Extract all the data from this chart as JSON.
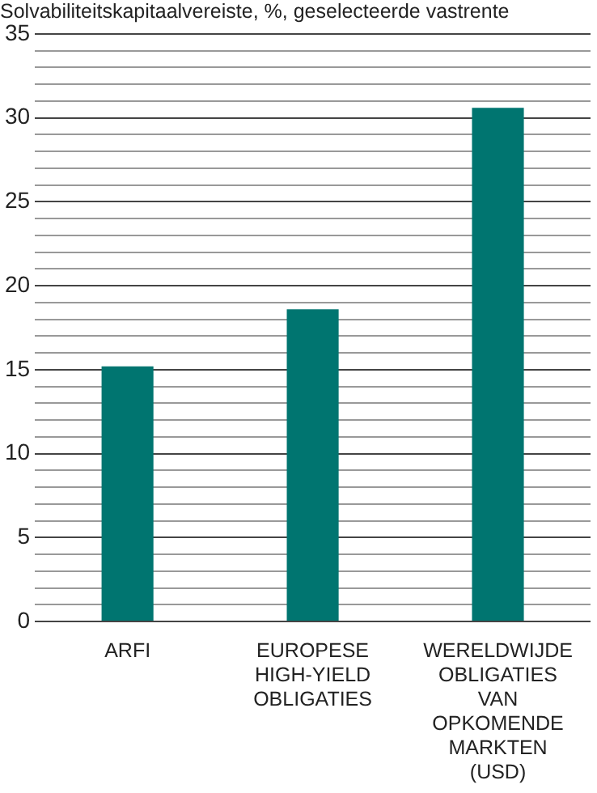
{
  "chart_data": {
    "type": "bar",
    "title": "Solvabiliteitskapitaalvereiste, %, geselecteerde vastrente",
    "categories": [
      "ARFI",
      "EUROPESE HIGH-YIELD OBLIGATIES",
      "WERELDWIJDE OBLIGATIES VAN OPKOMENDE MARKTEN (USD)"
    ],
    "values": [
      15.2,
      18.6,
      30.6
    ],
    "color": "#007570",
    "ylim": [
      0,
      35
    ],
    "yticks": [
      0,
      {
        "value": 1,
        "label": null
      },
      {
        "value": 2,
        "label": null
      },
      {
        "value": 3,
        "label": null
      },
      {
        "value": 4,
        "label": null
      },
      5,
      {
        "value": 6,
        "label": null
      },
      {
        "value": 7,
        "label": null
      },
      {
        "value": 8,
        "label": null
      },
      {
        "value": 9,
        "label": null
      },
      10,
      {
        "value": 11,
        "label": null
      },
      {
        "value": 12,
        "label": null
      },
      {
        "value": 13,
        "label": null
      },
      {
        "value": 14,
        "label": null
      },
      15,
      {
        "value": 16,
        "label": null
      },
      {
        "value": 17,
        "label": null
      },
      {
        "value": 18,
        "label": null
      },
      {
        "value": 19,
        "label": null
      },
      20,
      {
        "value": 21,
        "label": null
      },
      {
        "value": 22,
        "label": null
      },
      {
        "value": 23,
        "label": null
      },
      {
        "value": 24,
        "label": null
      },
      25,
      {
        "value": 26,
        "label": null
      },
      {
        "value": 27,
        "label": null
      },
      {
        "value": 28,
        "label": null
      },
      {
        "value": 29,
        "label": null
      },
      30,
      {
        "value": 31,
        "label": null
      },
      {
        "value": 32,
        "label": null
      },
      {
        "value": 33,
        "label": null
      },
      {
        "value": 34,
        "label": null
      },
      35
    ],
    "grid": true,
    "legend": false
  }
}
